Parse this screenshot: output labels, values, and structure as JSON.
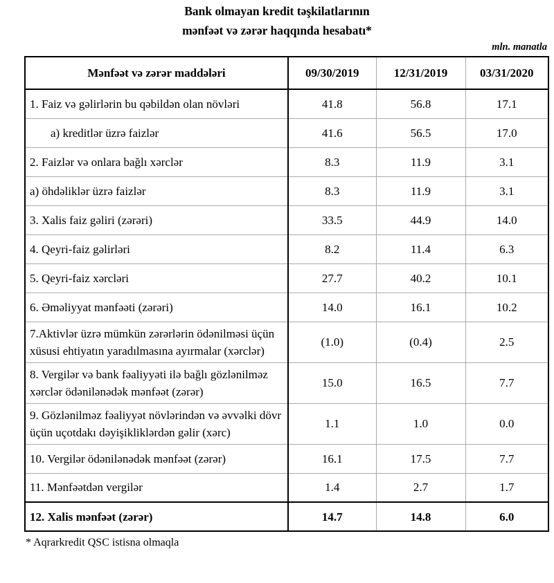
{
  "title": {
    "line1": "Bank olmayan kredit təşkilatlarının",
    "line2": "mənfəət və zərər haqqında hesabatı*"
  },
  "unit_note": "mln. manatla",
  "table": {
    "header": {
      "label": "Mənfəət və zərər maddələri",
      "columns": [
        "09/30/2019",
        "12/31/2019",
        "03/31/2020"
      ]
    },
    "rows": [
      {
        "label": "1. Faiz və gəlirlərin bu qəbildən olan növləri",
        "values": [
          "41.8",
          "56.8",
          "17.1"
        ],
        "indent": false,
        "bold": false,
        "multiline": false
      },
      {
        "label": "a) kreditlər üzrə faizlər",
        "values": [
          "41.6",
          "56.5",
          "17.0"
        ],
        "indent": true,
        "bold": false,
        "multiline": false
      },
      {
        "label": "2. Faizlər və onlara bağlı xərclər",
        "values": [
          "8.3",
          "11.9",
          "3.1"
        ],
        "indent": false,
        "bold": false,
        "multiline": false
      },
      {
        "label": "a) öhdəliklər üzrə faizlər",
        "values": [
          "8.3",
          "11.9",
          "3.1"
        ],
        "indent": false,
        "bold": false,
        "multiline": false
      },
      {
        "label": "3. Xalis faiz gəliri (zərəri)",
        "values": [
          "33.5",
          "44.9",
          "14.0"
        ],
        "indent": false,
        "bold": false,
        "multiline": false
      },
      {
        "label": "4. Qeyri-faiz gəlirləri",
        "values": [
          "8.2",
          "11.4",
          "6.3"
        ],
        "indent": false,
        "bold": false,
        "multiline": false
      },
      {
        "label": "5. Qeyri-faiz xərcləri",
        "values": [
          "27.7",
          "40.2",
          "10.1"
        ],
        "indent": false,
        "bold": false,
        "multiline": false
      },
      {
        "label": "6. Əməliyyat mənfəəti (zərəri)",
        "values": [
          "14.0",
          "16.1",
          "10.2"
        ],
        "indent": false,
        "bold": false,
        "multiline": false
      },
      {
        "label": "7.Aktivlər üzrə mümkün zərərlərin ödənilməsi üçün xüsusi ehtiyatın yaradılmasına ayırmalar (xərclər)",
        "values": [
          "(1.0)",
          "(0.4)",
          "2.5"
        ],
        "indent": false,
        "bold": false,
        "multiline": true
      },
      {
        "label": "8. Vergilər və bank fəaliyyəti ilə bağlı gözlənilməz xərclər ödənilənədək mənfəət (zərər)",
        "values": [
          "15.0",
          "16.5",
          "7.7"
        ],
        "indent": false,
        "bold": false,
        "multiline": true
      },
      {
        "label": "9. Gözlənilməz fəaliyyət növlərindən və əvvəlki dövr üçün uçotdakı dəyişikliklərdən gəlir (xərc)",
        "values": [
          "1.1",
          "1.0",
          "0.0"
        ],
        "indent": false,
        "bold": false,
        "multiline": true
      },
      {
        "label": "10. Vergilər ödənilənədək mənfəət (zərər)",
        "values": [
          "16.1",
          "17.5",
          "7.7"
        ],
        "indent": false,
        "bold": false,
        "multiline": false
      },
      {
        "label": "11. Mənfəətdən vergilər",
        "values": [
          "1.4",
          "2.7",
          "1.7"
        ],
        "indent": false,
        "bold": false,
        "multiline": false
      },
      {
        "label": "12. Xalis mənfəət (zərər)",
        "values": [
          "14.7",
          "14.8",
          "6.0"
        ],
        "indent": false,
        "bold": true,
        "multiline": false
      }
    ]
  },
  "footnote": "* Aqrarkredit QSC istisna olmaqla",
  "colors": {
    "text": "#000000",
    "strong_border": "#000000",
    "light_border": "#aaaaaa",
    "background": "#ffffff"
  }
}
